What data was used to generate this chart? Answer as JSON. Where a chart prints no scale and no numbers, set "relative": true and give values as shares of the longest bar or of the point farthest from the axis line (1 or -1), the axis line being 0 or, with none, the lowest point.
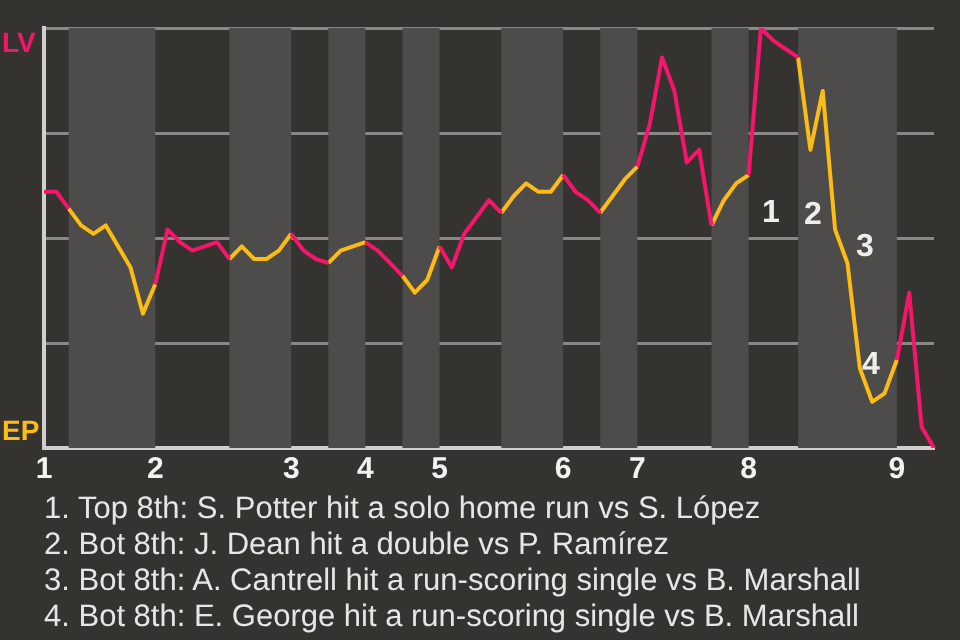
{
  "chart_data": {
    "type": "line",
    "relative": true,
    "categories": [
      "1",
      null,
      null,
      null,
      null,
      null,
      null,
      null,
      null,
      "2",
      null,
      null,
      null,
      null,
      null,
      null,
      null,
      null,
      null,
      null,
      "3",
      null,
      null,
      null,
      null,
      null,
      "4",
      null,
      null,
      null,
      null,
      null,
      "5",
      null,
      null,
      null,
      null,
      null,
      null,
      null,
      null,
      null,
      "6",
      null,
      null,
      null,
      null,
      null,
      "7",
      null,
      null,
      null,
      null,
      null,
      null,
      null,
      null,
      "8",
      null,
      null,
      null,
      null,
      null,
      null,
      null,
      null,
      null,
      null,
      null,
      "9",
      null,
      null,
      null
    ],
    "series": [
      {
        "name": "LV",
        "color": "#f5156b",
        "values": [
          0.61,
          0.61,
          0.57,
          null,
          null,
          null,
          null,
          null,
          null,
          0.39,
          0.52,
          0.49,
          0.47,
          0.48,
          0.49,
          0.45,
          null,
          null,
          null,
          null,
          0.51,
          0.47,
          0.45,
          0.44,
          null,
          null,
          0.49,
          0.47,
          0.44,
          0.41,
          null,
          null,
          0.48,
          0.43,
          0.51,
          0.55,
          0.59,
          0.56,
          null,
          null,
          null,
          null,
          0.65,
          0.61,
          0.59,
          0.56,
          null,
          null,
          0.67,
          0.77,
          0.93,
          0.85,
          0.68,
          0.71,
          0.53,
          null,
          null,
          0.65,
          1,
          0.97,
          0.95,
          0.93,
          null,
          null,
          null,
          null,
          null,
          null,
          null,
          0.21,
          0.37,
          0.05,
          0
        ]
      },
      {
        "name": "EP",
        "color": "#fcbc12",
        "values": [
          null,
          null,
          0.57,
          0.53,
          0.51,
          0.53,
          0.48,
          0.43,
          0.32,
          0.39,
          null,
          null,
          null,
          null,
          null,
          0.45,
          0.48,
          0.45,
          0.45,
          0.47,
          0.51,
          null,
          null,
          0.44,
          0.47,
          0.48,
          0.49,
          null,
          null,
          0.41,
          0.37,
          0.4,
          0.48,
          null,
          null,
          null,
          null,
          0.56,
          0.6,
          0.63,
          0.61,
          0.61,
          0.65,
          null,
          null,
          0.56,
          0.6,
          0.64,
          0.67,
          null,
          null,
          null,
          null,
          null,
          0.53,
          0.59,
          0.63,
          0.65,
          null,
          null,
          null,
          0.93,
          0.71,
          0.85,
          0.52,
          0.44,
          0.19,
          0.11,
          0.13,
          0.21,
          null,
          null,
          null
        ]
      }
    ],
    "grid": "y",
    "annotations": [
      "1",
      "2",
      "3",
      "4",
      "1. Top 8th: S. Potter hit a solo home run vs S. López",
      "2. Bot 8th: J. Dean hit a double vs P. Ramírez",
      "3. Bot 8th: A. Cantrell hit a run-scoring single vs B. Marshall",
      "4. Bot 8th: E. George hit a run-scoring single vs B. Marshall"
    ]
  }
}
